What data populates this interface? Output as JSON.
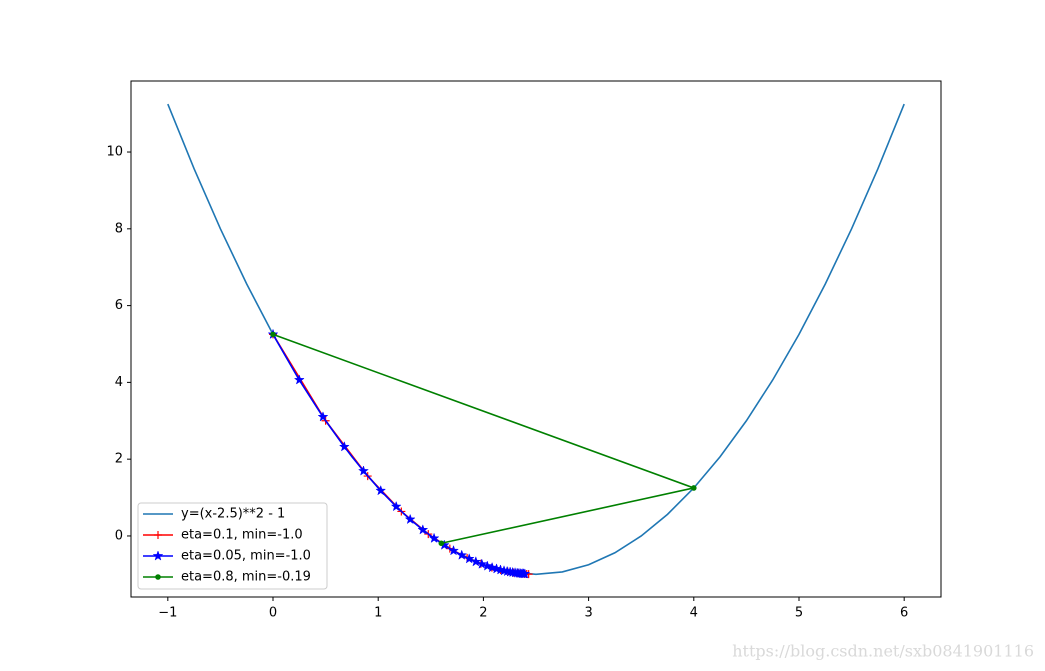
{
  "chart_data": {
    "type": "line",
    "xlim": [
      -1.35,
      6.35
    ],
    "ylim": [
      -1.59,
      11.85
    ],
    "xticks": [
      {
        "value": -1,
        "label": "−1"
      },
      0,
      1,
      2,
      3,
      4,
      5,
      6
    ],
    "yticks": [
      0,
      2,
      4,
      6,
      8,
      10
    ],
    "legend": "lower left",
    "series": [
      {
        "name": "y=(x-2.5)**2 - 1",
        "color": "#1f77b4",
        "marker": "none",
        "x": [
          -1,
          -0.75,
          -0.5,
          -0.25,
          0,
          0.25,
          0.5,
          0.75,
          1,
          1.25,
          1.5,
          1.75,
          2,
          2.25,
          2.5,
          2.75,
          3,
          3.25,
          3.5,
          3.75,
          4,
          4.25,
          4.5,
          4.75,
          5,
          5.25,
          5.5,
          5.75,
          6
        ],
        "values": [
          11.25,
          9.5625,
          8,
          6.5625,
          5.25,
          4.0625,
          3,
          2.0625,
          1.25,
          0.5625,
          0,
          -0.4375,
          -0.75,
          -0.9375,
          -1,
          -0.9375,
          -0.75,
          -0.4375,
          0,
          0.5625,
          1.25,
          2.0625,
          3,
          4.0625,
          5.25,
          6.5625,
          8,
          9.5625,
          11.25
        ]
      },
      {
        "name": "eta=0.1, min=-1.0",
        "color": "#ff0000",
        "marker": "+",
        "x": [
          0,
          0.5,
          0.9,
          1.22,
          1.476,
          1.681,
          1.845,
          1.976,
          2.081,
          2.164,
          2.232,
          2.285,
          2.328,
          2.363,
          2.39,
          2.412,
          2.43
        ],
        "values": [
          5.25,
          3,
          1.56,
          0.638,
          0.049,
          -0.329,
          -0.571,
          -0.725,
          -0.824,
          -0.887,
          -0.928,
          -0.954,
          -0.97,
          -0.981,
          -0.988,
          -0.992,
          -0.995
        ]
      },
      {
        "name": "eta=0.05, min=-1.0",
        "color": "#0000ff",
        "marker": "*",
        "x": [
          0,
          0.25,
          0.475,
          0.678,
          0.86,
          1.024,
          1.171,
          1.304,
          1.424,
          1.531,
          1.628,
          1.716,
          1.794,
          1.865,
          1.928,
          1.985,
          2.037,
          2.083,
          2.125,
          2.162,
          2.196,
          2.226,
          2.254,
          2.278,
          2.301,
          2.321,
          2.338,
          2.355,
          2.369,
          2.382,
          2.394
        ],
        "values": [
          5.25,
          4.063,
          3.101,
          2.322,
          1.691,
          1.179,
          0.765,
          0.43,
          0.158,
          -0.062,
          -0.24,
          -0.385,
          -0.501,
          -0.596,
          -0.673,
          -0.735,
          -0.785,
          -0.826,
          -0.859,
          -0.886,
          -0.908,
          -0.925,
          -0.939,
          -0.951,
          -0.96,
          -0.968,
          -0.974,
          -0.979,
          -0.983,
          -0.986,
          -0.989
        ]
      },
      {
        "name": "eta=0.8, min=-0.19",
        "color": "#008000",
        "marker": "o",
        "x": [
          0,
          4,
          1.6
        ],
        "values": [
          5.25,
          1.25,
          -0.19
        ]
      }
    ]
  },
  "watermark": "https://blog.csdn.net/sxb0841901116"
}
